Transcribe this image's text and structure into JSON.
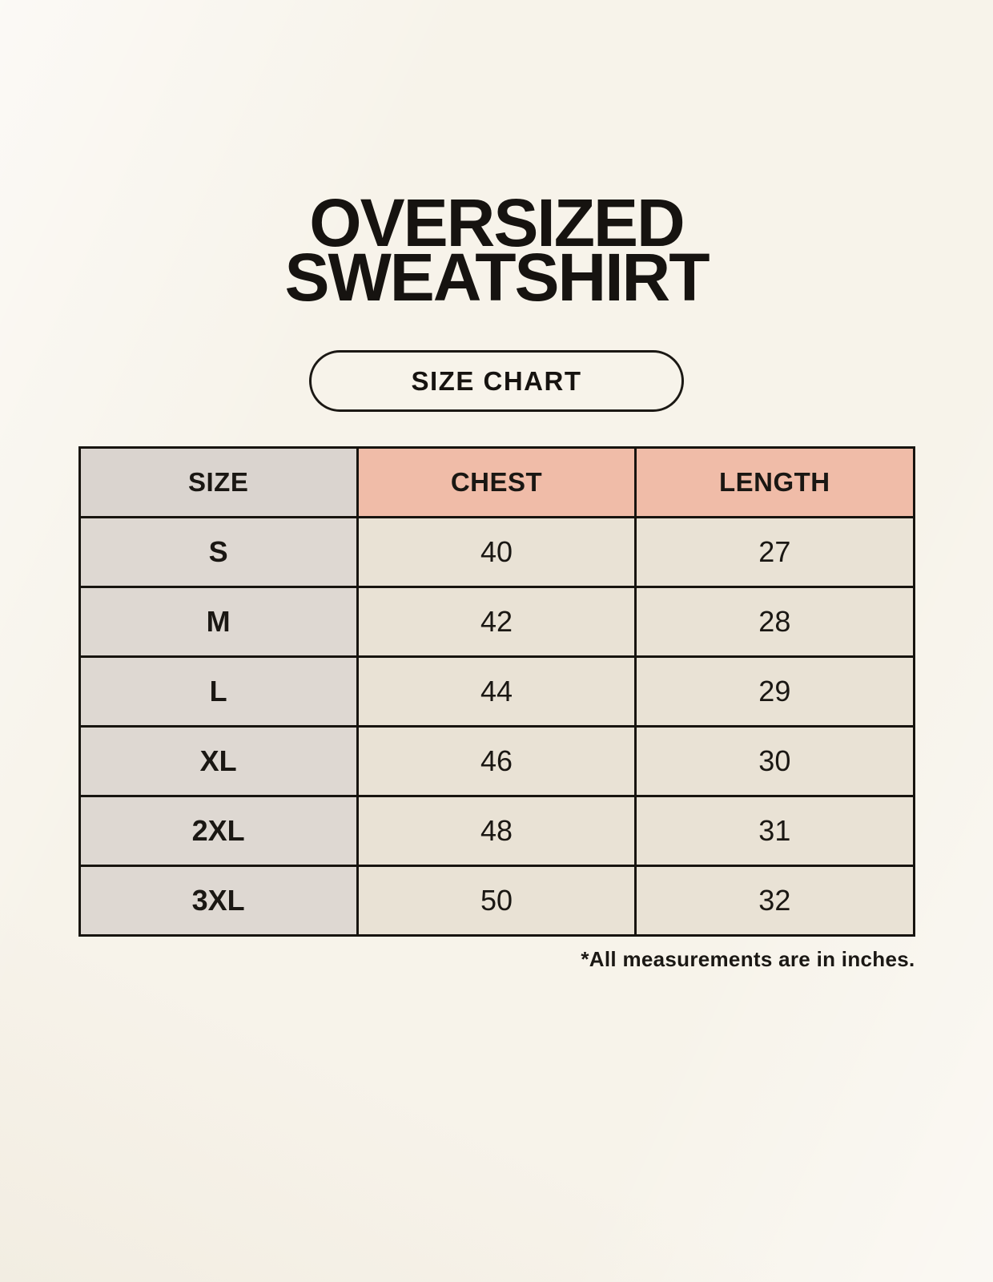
{
  "title": {
    "line1": "OVERSIZED",
    "line2": "SWEATSHIRT"
  },
  "size_chart_button": {
    "label": "SIZE CHART"
  },
  "table": {
    "headers": [
      "SIZE",
      "CHEST",
      "LENGTH"
    ],
    "rows": [
      [
        "S",
        "40",
        "27"
      ],
      [
        "M",
        "42",
        "28"
      ],
      [
        "L",
        "44",
        "29"
      ],
      [
        "XL",
        "46",
        "30"
      ],
      [
        "2XL",
        "48",
        "31"
      ],
      [
        "3XL",
        "50",
        "32"
      ]
    ]
  },
  "footnote": "*All measurements are in inches.",
  "colors": {
    "page_background": "#F7F3EA",
    "table_border": "#17140F",
    "size_column_header": "#DAD4CF",
    "size_column_body": "#DED8D2",
    "measure_header": "#F0BCA8",
    "value_cell": "#E9E2D5",
    "text": "#1A1713"
  }
}
